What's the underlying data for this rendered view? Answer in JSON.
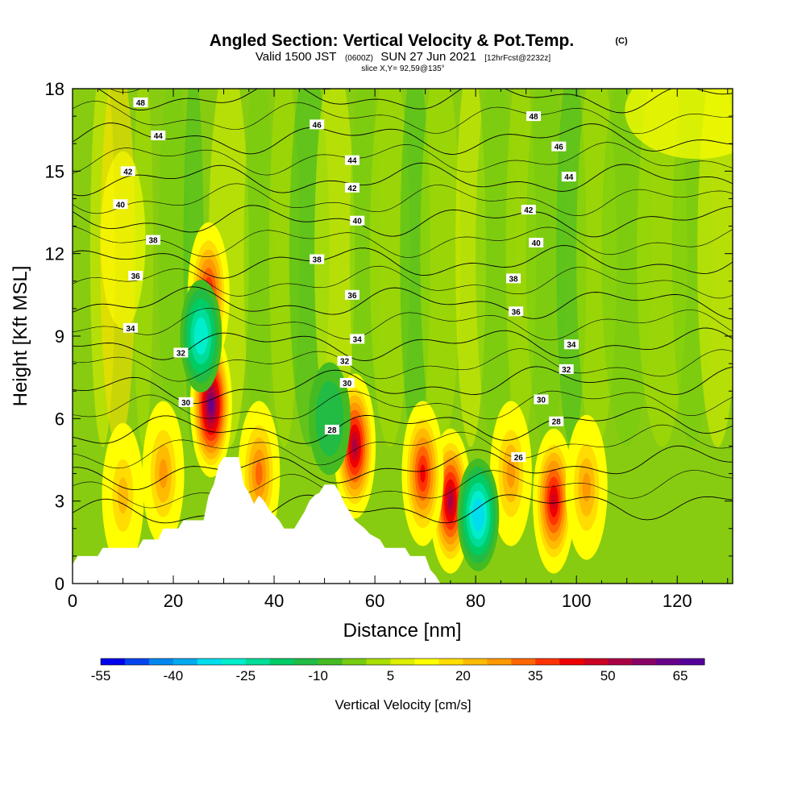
{
  "chart_data": {
    "type": "heatmap",
    "title": "Angled Section: Vertical Velocity & Pot.Temp.",
    "title_mark": "(C)",
    "subtitle": {
      "valid": "Valid 1500 JST",
      "utc": "(0600Z)",
      "date": "SUN 27 Jun 2021",
      "forecast": "[12hrFcst@2232z]"
    },
    "slice": "slice X,Y= 92,59@135°",
    "xlabel": "Distance [nm]",
    "ylabel": "Height [Kft MSL]",
    "xlim": [
      0,
      131
    ],
    "ylim": [
      0,
      18
    ],
    "x_ticks": [
      "0",
      "20",
      "40",
      "60",
      "80",
      "100",
      "120"
    ],
    "y_ticks": [
      "0",
      "3",
      "6",
      "9",
      "12",
      "15",
      "18"
    ],
    "colorbar": {
      "label": "Vertical Velocity [cm/s]",
      "tick_labels": [
        "-55",
        "-40",
        "-25",
        "-10",
        "5",
        "20",
        "35",
        "50",
        "65"
      ],
      "min": -55,
      "max": 70,
      "step": 5,
      "colors": [
        "#0000ee",
        "#0044ee",
        "#0088ee",
        "#00aaee",
        "#00ddee",
        "#00eecc",
        "#00dd99",
        "#00cc66",
        "#22bb44",
        "#44bb22",
        "#77cc11",
        "#aadd00",
        "#ddee00",
        "#ffff00",
        "#ffdd00",
        "#ffbb00",
        "#ff9900",
        "#ff6600",
        "#ff3300",
        "#ee0000",
        "#cc0022",
        "#aa0044",
        "#880066",
        "#660088",
        "#550099"
      ]
    },
    "terrain_kft": [
      [
        0,
        0.7
      ],
      [
        1,
        1.0
      ],
      [
        5,
        1.0
      ],
      [
        6,
        1.3
      ],
      [
        13,
        1.3
      ],
      [
        14,
        1.6
      ],
      [
        17,
        1.6
      ],
      [
        18,
        2.0
      ],
      [
        21,
        2.0
      ],
      [
        22,
        2.3
      ],
      [
        26,
        2.3
      ],
      [
        27,
        3.2
      ],
      [
        28,
        3.6
      ],
      [
        29,
        4.3
      ],
      [
        30,
        4.6
      ],
      [
        33,
        4.6
      ],
      [
        34,
        3.6
      ],
      [
        35,
        3.3
      ],
      [
        36,
        2.9
      ],
      [
        37,
        3.2
      ],
      [
        38,
        3.0
      ],
      [
        39,
        2.7
      ],
      [
        41,
        2.3
      ],
      [
        42,
        2.0
      ],
      [
        44,
        2.0
      ],
      [
        45,
        2.3
      ],
      [
        46,
        2.6
      ],
      [
        47,
        3.0
      ],
      [
        48,
        3.2
      ],
      [
        49,
        3.3
      ],
      [
        50,
        3.6
      ],
      [
        52,
        3.6
      ],
      [
        53,
        3.3
      ],
      [
        54,
        2.9
      ],
      [
        55,
        2.6
      ],
      [
        56,
        2.3
      ],
      [
        58,
        2.0
      ],
      [
        59,
        1.8
      ],
      [
        61,
        1.6
      ],
      [
        62,
        1.3
      ],
      [
        66,
        1.3
      ],
      [
        67,
        1.0
      ],
      [
        70,
        1.0
      ],
      [
        71,
        0.5
      ],
      [
        72,
        0.3
      ],
      [
        73,
        0
      ]
    ],
    "updrafts": [
      {
        "x": 27.5,
        "z": 6.5,
        "peak": 60
      },
      {
        "x": 27,
        "z": 10.5,
        "peak": 40
      },
      {
        "x": 56,
        "z": 5.0,
        "peak": 50
      },
      {
        "x": 75,
        "z": 3.0,
        "peak": 50
      },
      {
        "x": 95.5,
        "z": 3.0,
        "peak": 45
      },
      {
        "x": 18,
        "z": 4.0,
        "peak": 25
      },
      {
        "x": 10,
        "z": 3.2,
        "peak": 20
      },
      {
        "x": 37,
        "z": 4.0,
        "peak": 30
      },
      {
        "x": 69.5,
        "z": 4.0,
        "peak": 40
      },
      {
        "x": 87,
        "z": 4.0,
        "peak": 25
      },
      {
        "x": 102,
        "z": 3.5,
        "peak": 25
      }
    ],
    "downdrafts": [
      {
        "x": 25.5,
        "z": 9.0,
        "peak": -30
      },
      {
        "x": 80.5,
        "z": 2.5,
        "peak": -35
      },
      {
        "x": 51,
        "z": 6.0,
        "peak": -15
      }
    ],
    "potential_temperature": {
      "levels": [
        26,
        28,
        30,
        32,
        34,
        36,
        38,
        40,
        42,
        44,
        46,
        48
      ],
      "labels": [
        {
          "text": "48",
          "x": 13.5,
          "z": 17.5
        },
        {
          "text": "44",
          "x": 17,
          "z": 16.3
        },
        {
          "text": "42",
          "x": 11,
          "z": 15.0
        },
        {
          "text": "40",
          "x": 9.5,
          "z": 13.8
        },
        {
          "text": "38",
          "x": 16,
          "z": 12.5
        },
        {
          "text": "36",
          "x": 12.5,
          "z": 11.2
        },
        {
          "text": "34",
          "x": 11.5,
          "z": 9.3
        },
        {
          "text": "32",
          "x": 21.5,
          "z": 8.4
        },
        {
          "text": "30",
          "x": 22.5,
          "z": 6.6
        },
        {
          "text": "46",
          "x": 48.5,
          "z": 16.7
        },
        {
          "text": "44",
          "x": 55.5,
          "z": 15.4
        },
        {
          "text": "42",
          "x": 55.5,
          "z": 14.4
        },
        {
          "text": "40",
          "x": 56.5,
          "z": 13.2
        },
        {
          "text": "38",
          "x": 48.5,
          "z": 11.8
        },
        {
          "text": "36",
          "x": 55.5,
          "z": 10.5
        },
        {
          "text": "34",
          "x": 56.5,
          "z": 8.9
        },
        {
          "text": "32",
          "x": 54,
          "z": 8.1
        },
        {
          "text": "30",
          "x": 54.5,
          "z": 7.3
        },
        {
          "text": "28",
          "x": 51.5,
          "z": 5.6
        },
        {
          "text": "48",
          "x": 91.5,
          "z": 17.0
        },
        {
          "text": "46",
          "x": 96.5,
          "z": 15.9
        },
        {
          "text": "44",
          "x": 98.5,
          "z": 14.8
        },
        {
          "text": "42",
          "x": 90.5,
          "z": 13.6
        },
        {
          "text": "40",
          "x": 92,
          "z": 12.4
        },
        {
          "text": "38",
          "x": 87.5,
          "z": 11.1
        },
        {
          "text": "36",
          "x": 88,
          "z": 9.9
        },
        {
          "text": "34",
          "x": 99,
          "z": 8.7
        },
        {
          "text": "32",
          "x": 98,
          "z": 7.8
        },
        {
          "text": "30",
          "x": 93,
          "z": 6.7
        },
        {
          "text": "28",
          "x": 96,
          "z": 5.9
        },
        {
          "text": "26",
          "x": 88.5,
          "z": 4.6
        }
      ]
    }
  }
}
